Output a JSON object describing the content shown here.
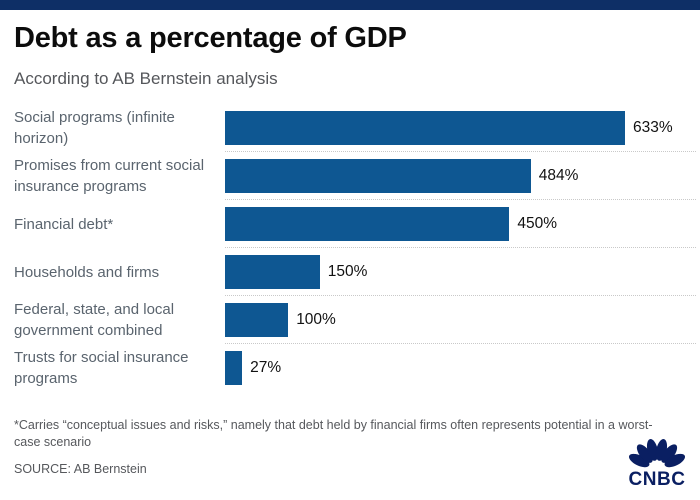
{
  "page": {
    "background": "#ffffff",
    "accent_bar_color": "#0e2f66"
  },
  "header": {
    "title": "Debt as a percentage of GDP",
    "subtitle": "According to AB Bernstein analysis"
  },
  "chart_data": {
    "type": "bar",
    "orientation": "horizontal",
    "title": "Debt as a percentage of GDP",
    "subtitle": "According to AB Bernstein analysis",
    "categories": [
      "Social programs (infinite horizon)",
      "Promises from current social insurance programs",
      "Financial debt*",
      "Households and firms",
      "Federal, state, and local government combined",
      "Trusts for social insurance programs"
    ],
    "values": [
      633,
      484,
      450,
      150,
      100,
      27
    ],
    "value_labels": [
      "633%",
      "484%",
      "450%",
      "150%",
      "100%",
      "27%"
    ],
    "unit": "% of GDP",
    "xlim": [
      0,
      633
    ],
    "bar_color": "#0e5792",
    "separator_color": "#c9c9c9",
    "grid": "dotted row separators only",
    "legend": "none",
    "value_label_position": "right of bar end"
  },
  "footnote": {
    "text": "*Carries “conceptual issues and risks,” namely that debt held by financial firms often represents potential in a worst-case scenario"
  },
  "source": {
    "text": "SOURCE: AB Bernstein"
  },
  "logo": {
    "name": "CNBC",
    "wordmark": "CNBC",
    "color": "#0a1f62"
  }
}
